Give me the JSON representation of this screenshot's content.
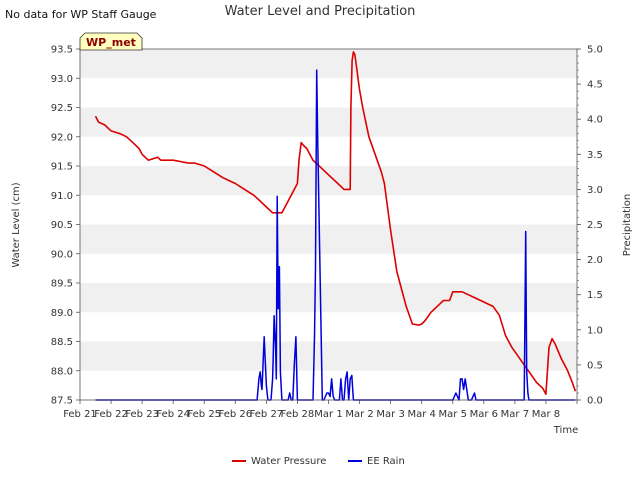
{
  "note": "No data for WP Staff Gauge",
  "site_badge": "WP_met",
  "colors": {
    "pressure": "#dd0000",
    "rain": "#0000dd",
    "band": "#f0f0f0",
    "badge_bg": "#ffffc0",
    "badge_text": "#8b0000"
  },
  "chart_data": {
    "type": "line",
    "title": "Water Level and Precipitation",
    "xlabel": "Time",
    "ylabel": "Water Level (cm)",
    "y2label": "Precipitation",
    "xlim": [
      0,
      16
    ],
    "ylim": [
      87.5,
      93.5
    ],
    "y2lim": [
      0,
      5
    ],
    "x_ticks": [
      0,
      1,
      2,
      3,
      4,
      5,
      6,
      7,
      8,
      9,
      10,
      11,
      12,
      13,
      14,
      15,
      16
    ],
    "x_tick_labels": [
      "Feb 21",
      "Feb 22",
      "Feb 23",
      "Feb 24",
      "Feb 25",
      "Feb 26",
      "Feb 27",
      "Feb 28",
      "Mar 1",
      "Mar 2",
      "Mar 3",
      "Mar 4",
      "Mar 5",
      "Mar 6",
      "Mar 7",
      "Mar 8"
    ],
    "y_ticks": [
      "87.5",
      "88.0",
      "88.5",
      "89.0",
      "89.5",
      "90.0",
      "90.5",
      "91.0",
      "91.5",
      "92.0",
      "92.5",
      "93.0",
      "93.5"
    ],
    "y2_ticks": [
      "0.0",
      "0.5",
      "1.0",
      "1.5",
      "2.0",
      "2.5",
      "3.0",
      "3.5",
      "4.0",
      "4.5",
      "5.0"
    ],
    "legend": [
      "Water Pressure",
      "EE Rain"
    ],
    "legend_position": "bottom-center",
    "series": [
      {
        "name": "Water Pressure",
        "axis": "left",
        "x": [
          0.5,
          0.6,
          0.8,
          1.0,
          1.3,
          1.5,
          1.7,
          1.9,
          2.0,
          2.2,
          2.5,
          2.6,
          3.0,
          3.5,
          3.7,
          4.0,
          4.3,
          4.6,
          5.0,
          5.3,
          5.6,
          5.8,
          6.0,
          6.2,
          6.5,
          6.6,
          6.8,
          7.0,
          7.05,
          7.12,
          7.2,
          7.3,
          7.5,
          7.7,
          8.0,
          8.3,
          8.5,
          8.7,
          8.72,
          8.76,
          8.8,
          8.85,
          8.9,
          8.95,
          9.0,
          9.1,
          9.3,
          9.5,
          9.7,
          9.8,
          10.0,
          10.2,
          10.3,
          10.5,
          10.7,
          10.9,
          11.0,
          11.1,
          11.3,
          11.5,
          11.7,
          11.9,
          12.0,
          12.3,
          12.5,
          12.7,
          12.9,
          13.1,
          13.3,
          13.5,
          13.7,
          13.9,
          14.1,
          14.3,
          14.5,
          14.7,
          14.9,
          15.0,
          15.1,
          15.2,
          15.3,
          15.5,
          15.7,
          15.85,
          15.95
        ],
        "values": [
          92.35,
          92.25,
          92.2,
          92.1,
          92.05,
          92.0,
          91.9,
          91.8,
          91.7,
          91.6,
          91.65,
          91.6,
          91.6,
          91.55,
          91.55,
          91.5,
          91.4,
          91.3,
          91.2,
          91.1,
          91.0,
          90.9,
          90.8,
          90.7,
          90.7,
          90.8,
          91.0,
          91.2,
          91.6,
          91.9,
          91.85,
          91.8,
          91.6,
          91.5,
          91.35,
          91.2,
          91.1,
          91.1,
          92.5,
          93.3,
          93.45,
          93.4,
          93.2,
          93.0,
          92.8,
          92.5,
          92.0,
          91.7,
          91.4,
          91.2,
          90.4,
          89.7,
          89.5,
          89.1,
          88.8,
          88.78,
          88.8,
          88.85,
          89.0,
          89.1,
          89.2,
          89.2,
          89.35,
          89.35,
          89.3,
          89.25,
          89.2,
          89.15,
          89.1,
          88.95,
          88.6,
          88.4,
          88.25,
          88.1,
          87.95,
          87.8,
          87.7,
          87.6,
          88.4,
          88.55,
          88.45,
          88.2,
          88.0,
          87.8,
          87.65
        ]
      },
      {
        "name": "EE Rain",
        "axis": "right",
        "x": [
          0.5,
          5.7,
          5.72,
          5.76,
          5.8,
          5.84,
          5.86,
          5.9,
          5.93,
          5.96,
          6.0,
          6.05,
          6.1,
          6.15,
          6.2,
          6.22,
          6.25,
          6.3,
          6.32,
          6.35,
          6.38,
          6.42,
          6.45,
          6.5,
          6.52,
          6.55,
          6.6,
          6.7,
          6.75,
          6.8,
          6.85,
          6.9,
          6.95,
          7.0,
          7.05,
          7.1,
          7.15,
          7.2,
          7.25,
          7.3,
          7.35,
          7.5,
          7.55,
          7.58,
          7.62,
          7.65,
          7.8,
          7.85,
          7.9,
          7.95,
          8.0,
          8.05,
          8.1,
          8.15,
          8.2,
          8.3,
          8.35,
          8.4,
          8.45,
          8.5,
          8.55,
          8.6,
          8.65,
          8.7,
          8.75,
          8.8,
          8.85,
          8.9,
          8.95,
          9.0,
          9.05,
          9.1,
          9.15,
          9.2,
          9.25,
          9.3,
          9.35,
          9.4,
          9.45,
          9.5,
          9.55,
          9.6,
          9.65,
          9.7,
          9.75,
          9.8,
          10.0,
          12.0,
          12.1,
          12.2,
          12.25,
          12.3,
          12.35,
          12.4,
          12.5,
          12.55,
          12.6,
          12.7,
          12.75,
          12.8,
          12.85,
          14.3,
          14.35,
          14.38,
          14.42,
          14.45,
          14.5,
          14.55,
          14.6,
          14.7,
          15.95
        ],
        "values": [
          0,
          0,
          0.1,
          0.3,
          0.4,
          0.2,
          0.15,
          0.6,
          0.9,
          0.6,
          0.2,
          0,
          0,
          0,
          0.3,
          0.6,
          1.2,
          0.7,
          0.3,
          2.9,
          1.3,
          1.9,
          0.4,
          0,
          0,
          0,
          0,
          0,
          0.1,
          0,
          0,
          0.5,
          0.9,
          0,
          0,
          0,
          0,
          0,
          0,
          0,
          0,
          0,
          0.9,
          1.9,
          4.7,
          3.8,
          0,
          0,
          0.05,
          0.1,
          0.1,
          0.05,
          0.3,
          0.05,
          0,
          0,
          0,
          0.3,
          0,
          0,
          0.3,
          0.4,
          0,
          0.3,
          0.35,
          0,
          0,
          0,
          0,
          0,
          0,
          0,
          0,
          0,
          0,
          0,
          0,
          0,
          0,
          0,
          0,
          0,
          0,
          0,
          0,
          0,
          0,
          0,
          0.1,
          0,
          0.3,
          0.3,
          0.15,
          0.3,
          0,
          0,
          0,
          0.1,
          0,
          0,
          0,
          0,
          2.4,
          0.4,
          0.1,
          0,
          0,
          0,
          0,
          0,
          0
        ]
      }
    ]
  }
}
